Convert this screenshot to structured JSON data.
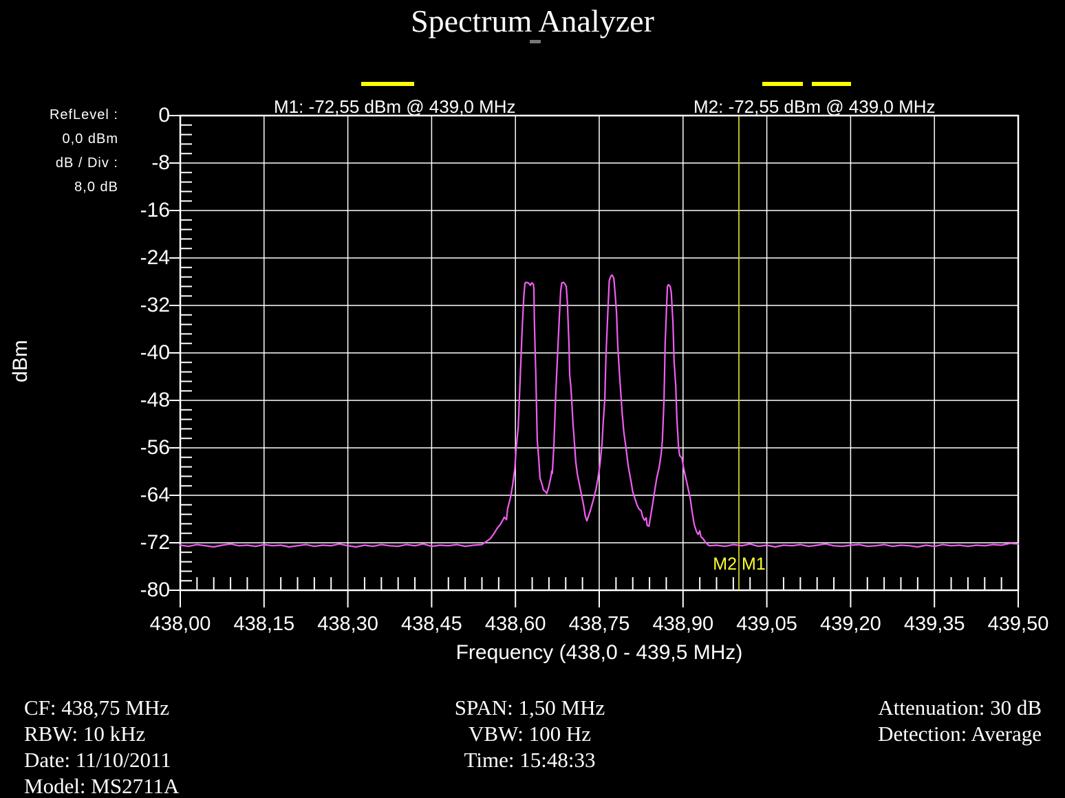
{
  "title": "Spectrum Analyzer",
  "colors": {
    "background": "#000000",
    "grid": "#ffffff",
    "text": "#ffffff",
    "trace": "#f25df2",
    "marker_yellow": "#ffff00",
    "marker_tag_yellow": "#ffff2e",
    "marker_line": "#cfcf26"
  },
  "settings_panel": {
    "ref_level_label": "RefLevel :",
    "ref_level_value": "0,0  dBm",
    "db_per_div_label": "dB / Div :",
    "db_per_div_value": "8,0 dB"
  },
  "markers": {
    "m1_readout": "M1:  -72,55 dBm @ 439,0 MHz",
    "m2_readout": "M2:  -72,55 dBm @ 439,0 MHz",
    "tag_left": "M2",
    "tag_right": "M1",
    "marker_freq_mhz": 439.0
  },
  "footer": {
    "left": [
      "CF: 438,75 MHz",
      "RBW: 10 kHz",
      "Date: 11/10/2011",
      "Model: MS2711A"
    ],
    "center": [
      "SPAN: 1,50 MHz",
      "VBW: 100 Hz",
      "Time: 15:48:33"
    ],
    "right": [
      "Attenuation: 30 dB",
      "Detection: Average"
    ]
  },
  "chart_data": {
    "type": "line",
    "title": "Spectrum Analyzer",
    "xlabel": "Frequency (438,0 - 439,5 MHz)",
    "ylabel": "dBm",
    "xlim": [
      438.0,
      439.5
    ],
    "ylim": [
      -80,
      0
    ],
    "x_divisions": 10,
    "y_divisions": 10,
    "minor_per_division": 5,
    "grid": "on",
    "x_tick_labels": [
      "438,00",
      "438,15",
      "438,30",
      "438,45",
      "438,60",
      "438,75",
      "438,90",
      "439,05",
      "439,20",
      "439,35",
      "439,50"
    ],
    "y_tick_labels": [
      "0",
      "-8",
      "-16",
      "-24",
      "-32",
      "-40",
      "-48",
      "-56",
      "-64",
      "-72",
      "-80"
    ],
    "noise_floor_dbm": -72.5,
    "marker_vline_mhz": 439.0,
    "peaks": [
      {
        "freq_mhz": 438.62,
        "dbm": -28.1
      },
      {
        "freq_mhz": 438.69,
        "dbm": -28.1
      },
      {
        "freq_mhz": 438.77,
        "dbm": -26.9
      },
      {
        "freq_mhz": 438.87,
        "dbm": -28.5
      }
    ],
    "trace": [
      [
        438.0,
        -72.4
      ],
      [
        438.015,
        -72.6
      ],
      [
        438.03,
        -72.3
      ],
      [
        438.045,
        -72.5
      ],
      [
        438.06,
        -72.7
      ],
      [
        438.075,
        -72.4
      ],
      [
        438.09,
        -72.2
      ],
      [
        438.105,
        -72.5
      ],
      [
        438.12,
        -72.4
      ],
      [
        438.135,
        -72.6
      ],
      [
        438.15,
        -72.3
      ],
      [
        438.165,
        -72.5
      ],
      [
        438.18,
        -72.4
      ],
      [
        438.195,
        -72.7
      ],
      [
        438.21,
        -72.5
      ],
      [
        438.225,
        -72.3
      ],
      [
        438.24,
        -72.6
      ],
      [
        438.255,
        -72.4
      ],
      [
        438.27,
        -72.5
      ],
      [
        438.285,
        -72.2
      ],
      [
        438.3,
        -72.5
      ],
      [
        438.315,
        -72.7
      ],
      [
        438.33,
        -72.4
      ],
      [
        438.345,
        -72.6
      ],
      [
        438.36,
        -72.3
      ],
      [
        438.375,
        -72.5
      ],
      [
        438.39,
        -72.6
      ],
      [
        438.405,
        -72.3
      ],
      [
        438.42,
        -72.5
      ],
      [
        438.435,
        -72.2
      ],
      [
        438.45,
        -72.6
      ],
      [
        438.465,
        -72.4
      ],
      [
        438.48,
        -72.5
      ],
      [
        438.495,
        -72.3
      ],
      [
        438.51,
        -72.6
      ],
      [
        438.525,
        -72.4
      ],
      [
        438.54,
        -72.3
      ],
      [
        438.555,
        -71.3
      ],
      [
        438.562,
        -70.4
      ],
      [
        438.567,
        -69.6
      ],
      [
        438.573,
        -68.9
      ],
      [
        438.576,
        -68.4
      ],
      [
        438.58,
        -67.7
      ],
      [
        438.584,
        -68.1
      ],
      [
        438.586,
        -66.3
      ],
      [
        438.591,
        -64.4
      ],
      [
        438.595,
        -62.3
      ],
      [
        438.599,
        -59.4
      ],
      [
        438.601,
        -56.5
      ],
      [
        438.605,
        -52.4
      ],
      [
        438.608,
        -45.5
      ],
      [
        438.612,
        -36.2
      ],
      [
        438.615,
        -30.4
      ],
      [
        438.617,
        -28.3
      ],
      [
        438.619,
        -28.1
      ],
      [
        438.623,
        -28.2
      ],
      [
        438.627,
        -28.6
      ],
      [
        438.629,
        -28.2
      ],
      [
        438.632,
        -28.4
      ],
      [
        438.633,
        -29.2
      ],
      [
        438.634,
        -35.0
      ],
      [
        438.637,
        -45.5
      ],
      [
        438.639,
        -54.7
      ],
      [
        438.642,
        -58.2
      ],
      [
        438.644,
        -61.1
      ],
      [
        438.648,
        -62.3
      ],
      [
        438.65,
        -63.1
      ],
      [
        438.654,
        -63.4
      ],
      [
        438.656,
        -63.7
      ],
      [
        438.659,
        -62.8
      ],
      [
        438.663,
        -61.1
      ],
      [
        438.665,
        -59.9
      ],
      [
        438.666,
        -60.3
      ],
      [
        438.669,
        -55.3
      ],
      [
        438.672,
        -47.2
      ],
      [
        438.676,
        -39.1
      ],
      [
        438.679,
        -33.3
      ],
      [
        438.681,
        -29.5
      ],
      [
        438.683,
        -28.2
      ],
      [
        438.686,
        -28.1
      ],
      [
        438.688,
        -28.3
      ],
      [
        438.691,
        -28.8
      ],
      [
        438.693,
        -31.5
      ],
      [
        438.696,
        -39.1
      ],
      [
        438.697,
        -43.7
      ],
      [
        438.699,
        -45.5
      ],
      [
        438.701,
        -48.4
      ],
      [
        438.703,
        -51.8
      ],
      [
        438.706,
        -55.7
      ],
      [
        438.708,
        -58.4
      ],
      [
        438.711,
        -60.5
      ],
      [
        438.714,
        -61.9
      ],
      [
        438.718,
        -63.8
      ],
      [
        438.722,
        -65.7
      ],
      [
        438.725,
        -67.5
      ],
      [
        438.728,
        -68.3
      ],
      [
        438.73,
        -67.7
      ],
      [
        438.734,
        -66.6
      ],
      [
        438.739,
        -64.9
      ],
      [
        438.744,
        -63.1
      ],
      [
        438.747,
        -61.5
      ],
      [
        438.751,
        -59.1
      ],
      [
        438.755,
        -55.3
      ],
      [
        438.757,
        -51.8
      ],
      [
        438.76,
        -47.8
      ],
      [
        438.762,
        -40.8
      ],
      [
        438.765,
        -33.9
      ],
      [
        438.767,
        -29.8
      ],
      [
        438.768,
        -27.8
      ],
      [
        438.771,
        -27.0
      ],
      [
        438.773,
        -26.9
      ],
      [
        438.776,
        -27.4
      ],
      [
        438.777,
        -28.3
      ],
      [
        438.779,
        -30.6
      ],
      [
        438.781,
        -33.3
      ],
      [
        438.783,
        -38.5
      ],
      [
        438.786,
        -43.1
      ],
      [
        438.788,
        -46.0
      ],
      [
        438.791,
        -50.1
      ],
      [
        438.794,
        -53.3
      ],
      [
        438.798,
        -56.1
      ],
      [
        438.802,
        -59.1
      ],
      [
        438.807,
        -61.7
      ],
      [
        438.81,
        -63.4
      ],
      [
        438.814,
        -64.6
      ],
      [
        438.818,
        -65.7
      ],
      [
        438.821,
        -66.3
      ],
      [
        438.825,
        -66.6
      ],
      [
        438.828,
        -67.7
      ],
      [
        438.831,
        -68.2
      ],
      [
        438.834,
        -67.8
      ],
      [
        438.836,
        -69.1
      ],
      [
        438.839,
        -69.2
      ],
      [
        438.842,
        -67.5
      ],
      [
        438.846,
        -65.2
      ],
      [
        438.85,
        -62.8
      ],
      [
        438.853,
        -61.1
      ],
      [
        438.857,
        -59.4
      ],
      [
        438.861,
        -57.0
      ],
      [
        438.863,
        -54.7
      ],
      [
        438.866,
        -47.8
      ],
      [
        438.868,
        -38.5
      ],
      [
        438.871,
        -31.0
      ],
      [
        438.872,
        -28.8
      ],
      [
        438.874,
        -28.5
      ],
      [
        438.877,
        -28.8
      ],
      [
        438.879,
        -29.8
      ],
      [
        438.882,
        -35.0
      ],
      [
        438.884,
        -41.4
      ],
      [
        438.887,
        -45.5
      ],
      [
        438.889,
        -51.2
      ],
      [
        438.892,
        -55.9
      ],
      [
        438.894,
        -57.3
      ],
      [
        438.898,
        -57.7
      ],
      [
        438.901,
        -59.4
      ],
      [
        438.905,
        -61.1
      ],
      [
        438.909,
        -62.8
      ],
      [
        438.913,
        -64.6
      ],
      [
        438.916,
        -66.6
      ],
      [
        438.92,
        -68.9
      ],
      [
        438.924,
        -70.1
      ],
      [
        438.927,
        -70.6
      ],
      [
        438.93,
        -70.0
      ],
      [
        438.932,
        -71.0
      ],
      [
        438.936,
        -71.3
      ],
      [
        438.94,
        -71.9
      ],
      [
        438.943,
        -72.2
      ],
      [
        438.947,
        -72.5
      ],
      [
        438.96,
        -72.4
      ],
      [
        438.975,
        -72.6
      ],
      [
        438.99,
        -72.3
      ],
      [
        439.005,
        -72.5
      ],
      [
        439.02,
        -72.2
      ],
      [
        439.035,
        -72.6
      ],
      [
        439.05,
        -72.4
      ],
      [
        439.065,
        -72.7
      ],
      [
        439.08,
        -72.4
      ],
      [
        439.095,
        -72.5
      ],
      [
        439.11,
        -72.3
      ],
      [
        439.125,
        -72.6
      ],
      [
        439.14,
        -72.4
      ],
      [
        439.155,
        -72.2
      ],
      [
        439.17,
        -72.5
      ],
      [
        439.185,
        -72.6
      ],
      [
        439.2,
        -72.4
      ],
      [
        439.215,
        -72.3
      ],
      [
        439.23,
        -72.6
      ],
      [
        439.245,
        -72.5
      ],
      [
        439.26,
        -72.3
      ],
      [
        439.275,
        -72.6
      ],
      [
        439.29,
        -72.4
      ],
      [
        439.305,
        -72.5
      ],
      [
        439.32,
        -72.7
      ],
      [
        439.335,
        -72.4
      ],
      [
        439.35,
        -72.6
      ],
      [
        439.365,
        -72.3
      ],
      [
        439.38,
        -72.5
      ],
      [
        439.395,
        -72.4
      ],
      [
        439.41,
        -72.6
      ],
      [
        439.425,
        -72.4
      ],
      [
        439.44,
        -72.5
      ],
      [
        439.455,
        -72.3
      ],
      [
        439.47,
        -72.4
      ],
      [
        439.485,
        -72.1
      ],
      [
        439.5,
        -72.2
      ]
    ]
  }
}
